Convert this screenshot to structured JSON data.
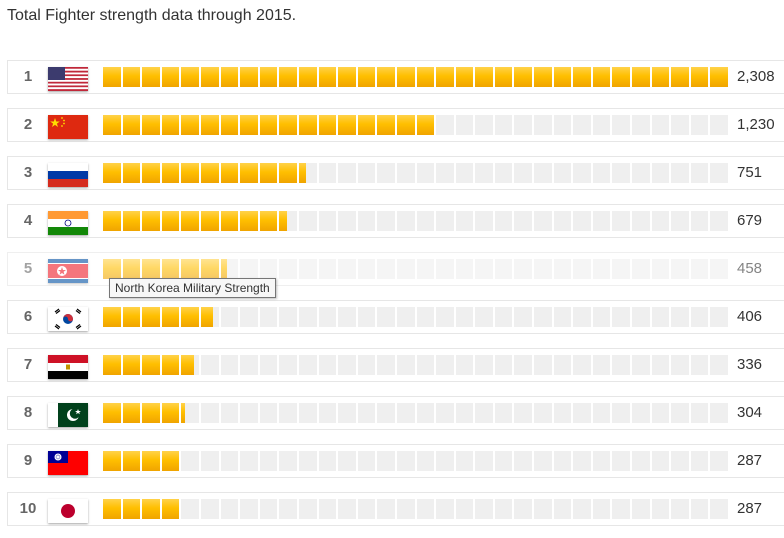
{
  "title": "Total Fighter strength data through 2015.",
  "tooltip": "North Korea Military Strength",
  "chart_data": {
    "type": "bar",
    "orientation": "horizontal",
    "title": "Total Fighter strength data through 2015.",
    "max": 2308,
    "segments": 32,
    "bar_color": "#ffbf00",
    "empty_color": "#efefef",
    "rows": [
      {
        "rank": "1",
        "country": "United States",
        "value": 2308,
        "label": "2,308",
        "flag": "us-flag-icon"
      },
      {
        "rank": "2",
        "country": "China",
        "value": 1230,
        "label": "1,230",
        "flag": "china-flag-icon"
      },
      {
        "rank": "3",
        "country": "Russia",
        "value": 751,
        "label": "751",
        "flag": "russia-flag-icon"
      },
      {
        "rank": "4",
        "country": "India",
        "value": 679,
        "label": "679",
        "flag": "india-flag-icon"
      },
      {
        "rank": "5",
        "country": "North Korea",
        "value": 458,
        "label": "458",
        "flag": "north-korea-flag-icon"
      },
      {
        "rank": "6",
        "country": "South Korea",
        "value": 406,
        "label": "406",
        "flag": "south-korea-flag-icon"
      },
      {
        "rank": "7",
        "country": "Egypt",
        "value": 336,
        "label": "336",
        "flag": "egypt-flag-icon"
      },
      {
        "rank": "8",
        "country": "Pakistan",
        "value": 304,
        "label": "304",
        "flag": "pakistan-flag-icon"
      },
      {
        "rank": "9",
        "country": "Taiwan",
        "value": 287,
        "label": "287",
        "flag": "taiwan-flag-icon"
      },
      {
        "rank": "10",
        "country": "Japan",
        "value": 287,
        "label": "287",
        "flag": "japan-flag-icon"
      }
    ]
  }
}
